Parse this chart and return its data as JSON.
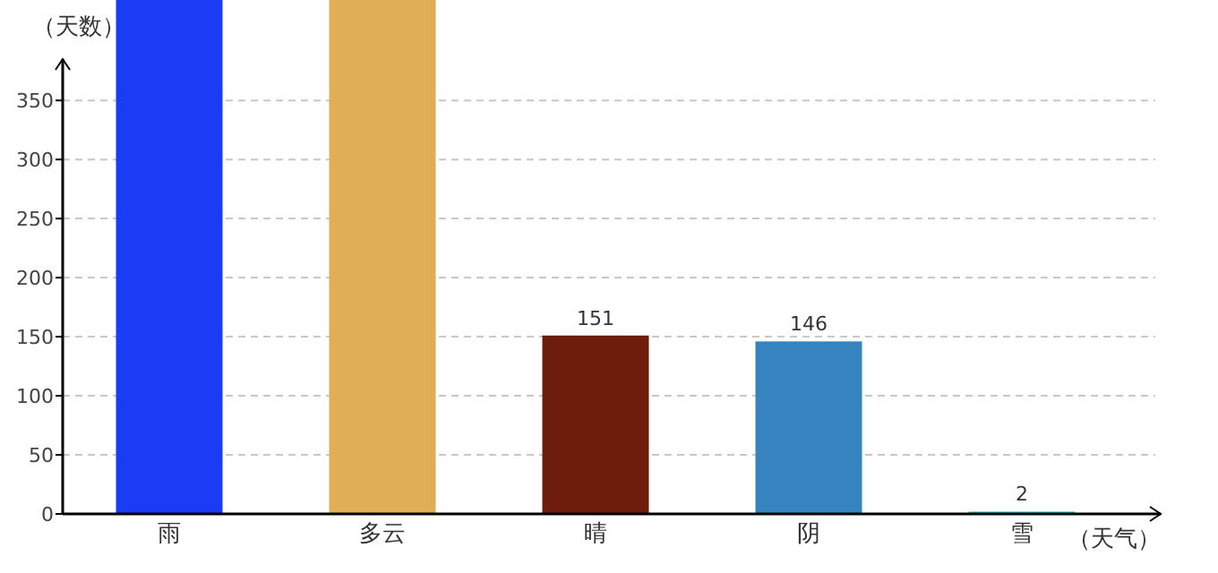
{
  "chart_data": {
    "type": "bar",
    "xlabel": "（天气）",
    "ylabel": "（天数）",
    "categories": [
      "雨",
      "多云",
      "晴",
      "阴",
      "雪"
    ],
    "values": [
      435,
      435,
      151,
      146,
      2
    ],
    "value_labels": [
      null,
      null,
      "151",
      "146",
      "2"
    ],
    "colors": [
      "#1a3cf5",
      "#e0ae55",
      "#6e1c0c",
      "#3584bf",
      "#40c8c8"
    ],
    "ylim": [
      0,
      435
    ],
    "yticks": [
      0,
      50,
      100,
      150,
      200,
      250,
      300,
      350
    ],
    "grid": "y"
  }
}
